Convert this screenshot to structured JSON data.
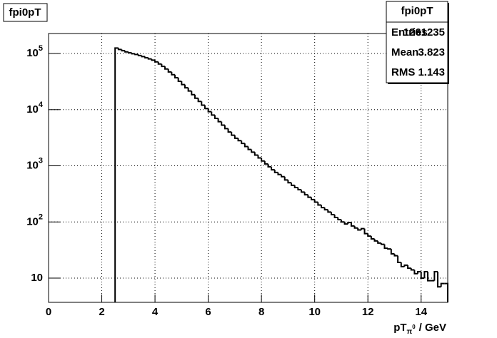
{
  "chart_data": {
    "type": "histogram",
    "title": "fpi0pT",
    "xlabel_main": "pT",
    "xlabel_sub": "π",
    "xlabel_sup": "0",
    "xlabel_unit": "/ GeV",
    "bins": [
      2.5,
      2.625,
      2.75,
      2.875,
      3,
      3.125,
      3.25,
      3.375,
      3.5,
      3.625,
      3.75,
      3.875,
      4,
      4.125,
      4.25,
      4.375,
      4.5,
      4.625,
      4.75,
      4.875,
      5,
      5.125,
      5.25,
      5.375,
      5.5,
      5.625,
      5.75,
      5.875,
      6,
      6.125,
      6.25,
      6.375,
      6.5,
      6.625,
      6.75,
      6.875,
      7,
      7.125,
      7.25,
      7.375,
      7.5,
      7.625,
      7.75,
      7.875,
      8,
      8.125,
      8.25,
      8.375,
      8.5,
      8.625,
      8.75,
      8.875,
      9,
      9.125,
      9.25,
      9.375,
      9.5,
      9.625,
      9.75,
      9.875,
      10,
      10.125,
      10.25,
      10.375,
      10.5,
      10.625,
      10.75,
      10.875,
      11,
      11.125,
      11.25,
      11.375,
      11.5,
      11.625,
      11.75,
      11.875,
      12,
      12.125,
      12.25,
      12.375,
      12.5,
      12.625,
      12.75,
      12.875,
      13,
      13.125,
      13.25,
      13.375,
      13.5,
      13.625,
      13.75,
      13.875,
      14,
      14.125,
      14.25,
      14.375,
      14.5,
      14.625,
      14.75,
      14.875,
      15
    ],
    "counts": [
      125000,
      118000,
      112000,
      107000,
      103000,
      99000,
      96000,
      92000,
      88000,
      84000,
      80000,
      76000,
      71000,
      65000,
      59000,
      53000,
      47000,
      42000,
      37000,
      32000,
      28000,
      24500,
      21500,
      18500,
      16000,
      14000,
      12000,
      10500,
      9200,
      8000,
      7000,
      6100,
      5300,
      4600,
      4000,
      3500,
      3100,
      2800,
      2500,
      2200,
      1950,
      1750,
      1550,
      1380,
      1220,
      1080,
      960,
      850,
      760,
      700,
      640,
      560,
      500,
      450,
      410,
      375,
      340,
      305,
      275,
      250,
      225,
      200,
      180,
      165,
      150,
      135,
      120,
      110,
      100,
      92,
      98,
      85,
      78,
      72,
      76,
      62,
      56,
      50,
      46,
      42,
      40,
      34,
      33,
      27,
      25,
      19,
      16,
      17,
      15,
      14,
      12,
      13,
      10,
      13,
      9,
      9,
      13,
      7,
      8,
      8
    ],
    "color": "#000000",
    "xlim": [
      0,
      15
    ],
    "xticks": [
      0,
      2,
      4,
      6,
      8,
      10,
      12,
      14
    ],
    "ylim": [
      3.7,
      227000
    ],
    "ylog": true,
    "yticks": [
      10,
      {
        "value": 100,
        "label": "10^2"
      },
      {
        "value": 1000,
        "label": "10^3"
      },
      {
        "value": 10000,
        "label": "10^4"
      },
      {
        "value": 100000,
        "label": "10^5"
      }
    ],
    "grid": true,
    "stats": {
      "title": "fpi0pT",
      "rows": [
        {
          "label": "Entries",
          "value": 1261235
        },
        {
          "label": "Mean",
          "value": 3.823
        },
        {
          "label": "RMS",
          "value": 1.143
        }
      ]
    }
  }
}
